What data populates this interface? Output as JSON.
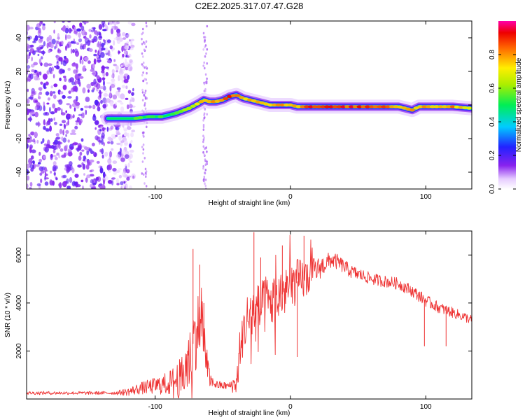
{
  "title": "C2E2.2025.317.07.47.G28",
  "chart_data": [
    {
      "type": "heatmap",
      "xlabel": "Height of straight line (km)",
      "ylabel": "Frequency (Hz)",
      "xlim": [
        -195,
        134
      ],
      "ylim": [
        -50,
        50
      ],
      "xticks": [
        -100,
        0,
        100
      ],
      "yticks": [
        -40,
        -20,
        0,
        20,
        40
      ],
      "colorbar": {
        "label": "Normalized spectral amplitude",
        "range": [
          0,
          1
        ],
        "ticks": [
          0.0,
          0.2,
          0.4,
          0.6,
          0.8
        ]
      },
      "trace": {
        "x": [
          -135,
          -125,
          -115,
          -105,
          -95,
          -85,
          -75,
          -68,
          -64,
          -60,
          -55,
          -50,
          -45,
          -40,
          -35,
          -30,
          -25,
          -20,
          -15,
          -10,
          -5,
          0,
          5,
          10,
          20,
          30,
          40,
          50,
          60,
          70,
          80,
          85,
          90,
          95,
          100,
          110,
          120,
          134
        ],
        "y": [
          -8,
          -8,
          -8,
          -7,
          -7,
          -5,
          -2,
          1,
          3,
          2,
          2,
          3,
          5,
          6,
          4,
          3,
          2,
          1,
          0,
          0,
          0,
          0,
          -1,
          -1,
          -1,
          -1,
          -1,
          -1,
          -1,
          -1,
          -1,
          -2,
          -3,
          -1,
          -1,
          -1,
          -1,
          -2
        ],
        "amplitude": [
          0.4,
          0.5,
          0.6,
          0.6,
          0.6,
          0.6,
          0.7,
          0.8,
          0.9,
          0.9,
          0.9,
          1.0,
          1.0,
          1.0,
          0.9,
          0.9,
          0.9,
          0.9,
          0.9,
          0.9,
          0.9,
          0.9,
          0.9,
          1.0,
          1.0,
          1.0,
          1.0,
          1.0,
          1.0,
          1.0,
          0.9,
          0.9,
          0.9,
          0.9,
          0.9,
          0.9,
          0.9,
          0.8
        ]
      },
      "noise_region_x": [
        -195,
        -122
      ]
    },
    {
      "type": "line",
      "xlabel": "Height of straight line (km)",
      "ylabel": "SNR (10 * v/v)",
      "xlim": [
        -195,
        134
      ],
      "ylim": [
        0,
        7000
      ],
      "xticks": [
        -100,
        0,
        100
      ],
      "yticks": [
        2000,
        4000,
        6000
      ],
      "color": "#ee3333",
      "envelope": {
        "x": [
          -195,
          -180,
          -160,
          -140,
          -130,
          -120,
          -115,
          -110,
          -105,
          -100,
          -95,
          -90,
          -85,
          -80,
          -75,
          -72,
          -70,
          -68,
          -66,
          -64,
          -62,
          -60,
          -55,
          -50,
          -45,
          -42,
          -40,
          -38,
          -36,
          -34,
          -32,
          -30,
          -28,
          -26,
          -24,
          -22,
          -20,
          -15,
          -10,
          -5,
          0,
          5,
          10,
          15,
          20,
          25,
          30,
          35,
          40,
          45,
          50,
          60,
          70,
          80,
          90,
          100,
          110,
          120,
          134
        ],
        "y": [
          250,
          250,
          250,
          250,
          250,
          300,
          380,
          450,
          500,
          550,
          600,
          650,
          750,
          900,
          1500,
          2300,
          2800,
          3100,
          3000,
          2500,
          1500,
          800,
          600,
          550,
          550,
          600,
          700,
          1500,
          2400,
          3000,
          3300,
          3400,
          3500,
          3550,
          3600,
          3700,
          3800,
          4000,
          4200,
          4400,
          4700,
          4900,
          5000,
          5200,
          5400,
          5600,
          5800,
          5700,
          5500,
          5300,
          5200,
          5000,
          4900,
          4800,
          4500,
          4100,
          3800,
          3600,
          3300
        ]
      },
      "noise_amplitude": {
        "x": [
          -195,
          -130,
          -125,
          -100,
          -90,
          -80,
          -70,
          -62,
          -58,
          -45,
          -38,
          -30,
          -20,
          -10,
          0,
          10,
          20,
          30,
          40,
          60,
          80,
          100,
          134
        ],
        "y": [
          70,
          70,
          120,
          350,
          500,
          900,
          1600,
          800,
          200,
          150,
          700,
          1300,
          1200,
          1100,
          1000,
          900,
          500,
          350,
          300,
          250,
          250,
          250,
          200
        ]
      },
      "peaks": [
        {
          "x": -72,
          "y": 6250
        },
        {
          "x": -67,
          "y": 5600
        },
        {
          "x": -64,
          "y": 4000
        },
        {
          "x": -27,
          "y": 6950
        },
        {
          "x": -22,
          "y": 5900
        },
        {
          "x": -6,
          "y": 6400
        },
        {
          "x": 10,
          "y": 6800
        },
        {
          "x": 5,
          "y": 1750
        },
        {
          "x": 99,
          "y": 2200
        },
        {
          "x": 115,
          "y": 2200
        }
      ]
    }
  ]
}
